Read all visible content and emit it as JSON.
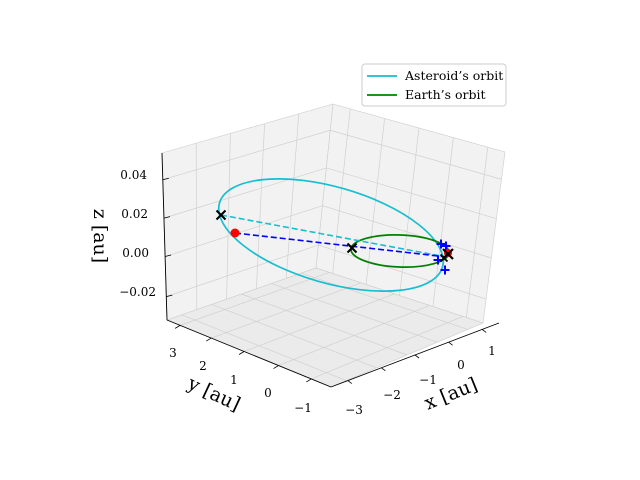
{
  "chart_data": {
    "type": "line3d",
    "title": "",
    "xlabel": "$x$ [au]",
    "ylabel": "$y$ [au]",
    "zlabel": "$z$ [au]",
    "x_ticks": [
      "−3",
      "−2",
      "−1",
      "0",
      "1"
    ],
    "y_ticks": [
      "−1",
      "0",
      "1",
      "2",
      "3"
    ],
    "z_ticks": [
      "−0.02",
      "0.00",
      "0.02",
      "0.04"
    ],
    "grid": true,
    "legend_position": "top-right",
    "series": [
      {
        "name": "Asteroid’s orbit",
        "color": "#17becf",
        "style": "solid"
      },
      {
        "name": "Earth’s orbit",
        "color": "#008000",
        "style": "solid"
      }
    ],
    "annotations": {
      "cross_markers": 4,
      "plus_markers": 4,
      "red_dot_markers": 2,
      "dashed_transfer_lines": [
        "#17becf",
        "#0000ff"
      ]
    }
  },
  "labels": {
    "xlabel_text": "x [au]",
    "ylabel_text": "y [au]",
    "zlabel_text": "z [au]"
  },
  "legend": {
    "asteroid": "Asteroid’s orbit",
    "earth": "Earth’s orbit"
  }
}
